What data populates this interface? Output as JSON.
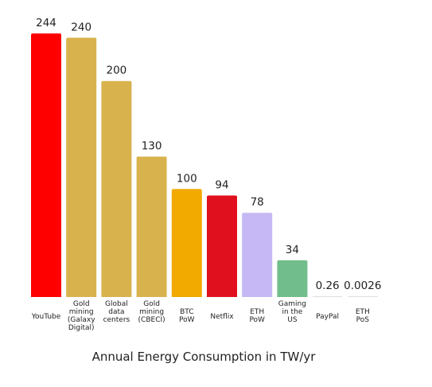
{
  "chart_data": {
    "type": "bar",
    "title": "Annual Energy Consumption in TW/yr",
    "xlabel": "",
    "ylabel": "",
    "ylim": [
      0,
      244
    ],
    "grid": false,
    "legend": "none",
    "categories": [
      [
        "YouTube"
      ],
      [
        "Gold",
        "mining",
        "(Galaxy",
        "Digital)"
      ],
      [
        "Global",
        "data",
        "centers"
      ],
      [
        "Gold",
        "mining",
        "(CBECI)"
      ],
      [
        "BTC",
        "PoW"
      ],
      [
        "Netflix"
      ],
      [
        "ETH",
        "PoW"
      ],
      [
        "Gaming",
        "in the",
        "US"
      ],
      [
        "PayPal"
      ],
      [
        "ETH",
        "PoS"
      ]
    ],
    "values": [
      244,
      240,
      200,
      130,
      100,
      94,
      78,
      34,
      0.26,
      0.0026
    ],
    "value_labels": [
      "244",
      "240",
      "200",
      "130",
      "100",
      "94",
      "78",
      "34",
      "0.26",
      "0.0026"
    ],
    "colors": [
      "#ff0000",
      "#d8b24c",
      "#d8b24c",
      "#d8b24c",
      "#f2a900",
      "#e0101e",
      "#c5b8f4",
      "#72bd8c",
      "#dddddd",
      "#dddddd"
    ]
  }
}
